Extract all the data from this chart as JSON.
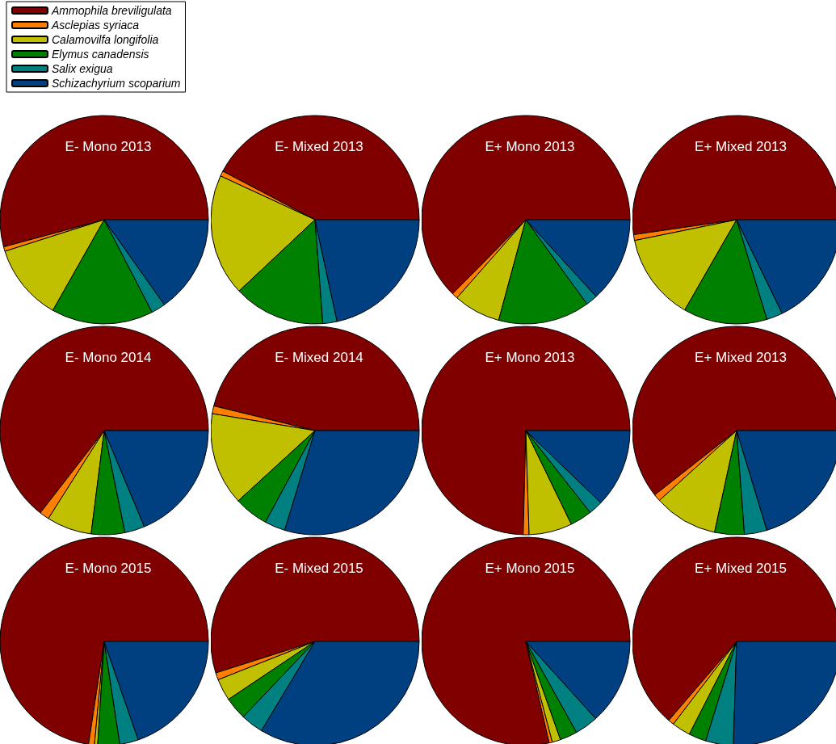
{
  "chart_data": [
    {
      "type": "pie",
      "title": "E- Mono 2013",
      "legend": "top left",
      "categories": [
        "Ammophila breviligulata",
        "Asclepias syriaca",
        "Calamovilfa longifolia",
        "Elymus canadensis",
        "Salix exigua",
        "Schizachyrium scoparium"
      ],
      "colors": [
        "#800000",
        "#ff8000",
        "#c0c000",
        "#008000",
        "#008080",
        "#004080"
      ],
      "values": [
        54.2,
        0.7,
        11.9,
        15.8,
        2.2,
        15.2
      ]
    },
    {
      "type": "pie",
      "title": "E- Mixed 2013",
      "legend": false,
      "categories": [
        null,
        null,
        null,
        null,
        null,
        null
      ],
      "colors": [
        "#800000",
        "#ff8000",
        "#c0c000",
        "#008000",
        "#008080",
        "#004080"
      ],
      "values": [
        42.3,
        0.8,
        18.9,
        14.2,
        2.2,
        21.6
      ]
    },
    {
      "type": "pie",
      "title": "E+ Mono 2013",
      "legend": false,
      "categories": [
        null,
        null,
        null,
        null,
        null,
        null
      ],
      "colors": [
        "#800000",
        "#ff8000",
        "#c0c000",
        "#008000",
        "#008080",
        "#004080"
      ],
      "values": [
        62.6,
        0.9,
        7.3,
        14.2,
        1.8,
        13.2
      ]
    },
    {
      "type": "pie",
      "title": "E+ Mixed 2013",
      "legend": false,
      "categories": [
        null,
        null,
        null,
        null,
        null,
        null
      ],
      "colors": [
        "#800000",
        "#ff8000",
        "#c0c000",
        "#008000",
        "#008080",
        "#004080"
      ],
      "values": [
        52.3,
        0.9,
        13.5,
        13.0,
        2.5,
        17.8
      ]
    },
    {
      "type": "pie",
      "title": "E- Mono 2014",
      "legend": false,
      "categories": [
        null,
        null,
        null,
        null,
        null,
        null
      ],
      "colors": [
        "#800000",
        "#ff8000",
        "#c0c000",
        "#008000",
        "#008080",
        "#004080"
      ],
      "values": [
        64.5,
        1.5,
        7.0,
        5.2,
        3.1,
        18.7
      ]
    },
    {
      "type": "pie",
      "title": "E- Mixed 2014",
      "legend": false,
      "categories": [
        null,
        null,
        null,
        null,
        null,
        null
      ],
      "colors": [
        "#800000",
        "#ff8000",
        "#c0c000",
        "#008000",
        "#008080",
        "#004080"
      ],
      "values": [
        46.2,
        1.2,
        14.4,
        5.3,
        3.2,
        29.7
      ]
    },
    {
      "type": "pie",
      "title": "E+ Mono 2013",
      "legend": false,
      "categories": [
        null,
        null,
        null,
        null,
        null,
        null
      ],
      "colors": [
        "#800000",
        "#ff8000",
        "#c0c000",
        "#008000",
        "#008080",
        "#004080"
      ],
      "values": [
        74.6,
        0.9,
        6.7,
        3.4,
        2.2,
        12.2
      ]
    },
    {
      "type": "pie",
      "title": "E+ Mixed 2013",
      "legend": false,
      "categories": [
        null,
        null,
        null,
        null,
        null,
        null
      ],
      "colors": [
        "#800000",
        "#ff8000",
        "#c0c000",
        "#008000",
        "#008080",
        "#004080"
      ],
      "values": [
        60.6,
        1.1,
        9.9,
        4.6,
        3.5,
        20.3
      ]
    },
    {
      "type": "pie",
      "title": "E- Mono 2015",
      "legend": false,
      "categories": [
        null,
        null,
        null,
        null,
        null,
        null
      ],
      "colors": [
        "#800000",
        "#ff8000",
        "#c0c000",
        "#008000",
        "#008080",
        "#004080"
      ],
      "values": [
        72.6,
        0.9,
        0.5,
        3.4,
        2.9,
        19.7
      ]
    },
    {
      "type": "pie",
      "title": "E- Mixed 2015",
      "legend": false,
      "categories": [
        null,
        null,
        null,
        null,
        null,
        null
      ],
      "colors": [
        "#800000",
        "#ff8000",
        "#c0c000",
        "#008000",
        "#008080",
        "#004080"
      ],
      "values": [
        54.9,
        1.1,
        3.4,
        3.5,
        3.5,
        33.6
      ]
    },
    {
      "type": "pie",
      "title": "E+ Mono 2015",
      "legend": false,
      "categories": [
        null,
        null,
        null,
        null,
        null,
        null
      ],
      "colors": [
        "#800000",
        "#ff8000",
        "#c0c000",
        "#008000",
        "#008080",
        "#004080"
      ],
      "values": [
        78.6,
        0.5,
        1.3,
        2.7,
        3.6,
        13.3
      ]
    },
    {
      "type": "pie",
      "title": "E+ Mixed 2015",
      "legend": false,
      "categories": [
        null,
        null,
        null,
        null,
        null,
        null
      ],
      "colors": [
        "#800000",
        "#ff8000",
        "#c0c000",
        "#008000",
        "#008080",
        "#004080"
      ],
      "values": [
        63.7,
        0.9,
        2.9,
        2.7,
        4.3,
        25.5
      ]
    }
  ]
}
